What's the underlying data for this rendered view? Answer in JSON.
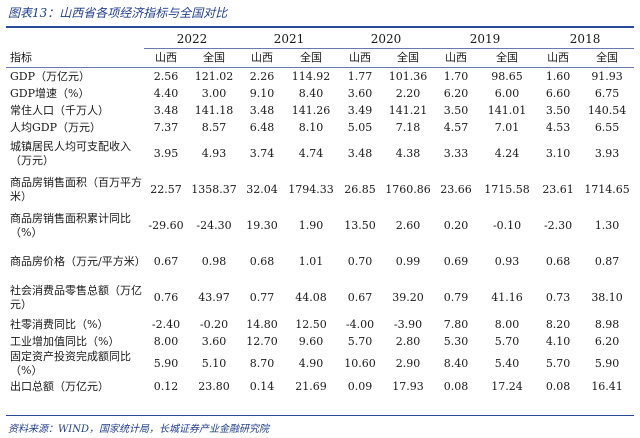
{
  "title": "图表13：山西省各项经济指标与全国对比",
  "header": {
    "indicator": "指标",
    "years": [
      "2022",
      "2021",
      "2020",
      "2019",
      "2018"
    ],
    "shanxi": "山西",
    "national": "全国"
  },
  "rows": [
    {
      "label": "GDP（万亿元）",
      "values": [
        "2.56",
        "121.02",
        "2.26",
        "114.92",
        "1.77",
        "101.36",
        "1.70",
        "98.65",
        "1.60",
        "91.93"
      ]
    },
    {
      "label": "GDP增速（%）",
      "values": [
        "4.40",
        "3.00",
        "9.10",
        "8.40",
        "3.60",
        "2.20",
        "6.20",
        "6.00",
        "6.60",
        "6.75"
      ]
    },
    {
      "label": "常住人口（千万人）",
      "values": [
        "3.48",
        "141.18",
        "3.48",
        "141.26",
        "3.49",
        "141.21",
        "3.50",
        "141.01",
        "3.50",
        "140.54"
      ]
    },
    {
      "label": "人均GDP（万元）",
      "values": [
        "7.37",
        "8.57",
        "6.48",
        "8.10",
        "5.05",
        "7.18",
        "4.57",
        "7.01",
        "4.53",
        "6.55"
      ]
    },
    {
      "label": "城镇居民人均可支配收入（万元）",
      "values": [
        "3.95",
        "4.93",
        "3.74",
        "4.74",
        "3.48",
        "4.38",
        "3.33",
        "4.24",
        "3.10",
        "3.93"
      ]
    },
    {
      "label": "商品房销售面积（百万平方米）",
      "values": [
        "22.57",
        "1358.37",
        "32.04",
        "1794.33",
        "26.85",
        "1760.86",
        "23.66",
        "1715.58",
        "23.61",
        "1714.65"
      ]
    },
    {
      "label": "商品房销售面积累计同比（%）",
      "values": [
        "-29.60",
        "-24.30",
        "19.30",
        "1.90",
        "13.50",
        "2.60",
        "0.20",
        "-0.10",
        "-2.30",
        "1.30"
      ]
    },
    {
      "label": "商品房价格（万元/平方米）",
      "values": [
        "0.67",
        "0.98",
        "0.68",
        "1.01",
        "0.70",
        "0.99",
        "0.69",
        "0.93",
        "0.68",
        "0.87"
      ]
    },
    {
      "label": "社会消费品零售总额（万亿元）",
      "values": [
        "0.76",
        "43.97",
        "0.77",
        "44.08",
        "0.67",
        "39.20",
        "0.79",
        "41.16",
        "0.73",
        "38.10"
      ]
    },
    {
      "label": "社零消费同比（%）",
      "values": [
        "-2.40",
        "-0.20",
        "14.80",
        "12.50",
        "-4.00",
        "-3.90",
        "7.80",
        "8.00",
        "8.20",
        "8.98"
      ]
    },
    {
      "label": "工业增加值同比（%）",
      "values": [
        "8.00",
        "3.60",
        "12.70",
        "9.60",
        "5.70",
        "2.80",
        "5.30",
        "5.70",
        "4.10",
        "6.20"
      ]
    },
    {
      "label": "固定资产投资完成额同比（%）",
      "values": [
        "5.90",
        "5.10",
        "8.70",
        "4.90",
        "10.60",
        "2.90",
        "8.40",
        "5.40",
        "5.70",
        "5.90"
      ]
    },
    {
      "label": "出口总额（万亿元）",
      "values": [
        "0.12",
        "23.80",
        "0.14",
        "21.69",
        "0.09",
        "17.93",
        "0.08",
        "17.24",
        "0.08",
        "16.41"
      ]
    }
  ],
  "source": "资料来源：WIND，国家统计局，长城证券产业金融研究院"
}
